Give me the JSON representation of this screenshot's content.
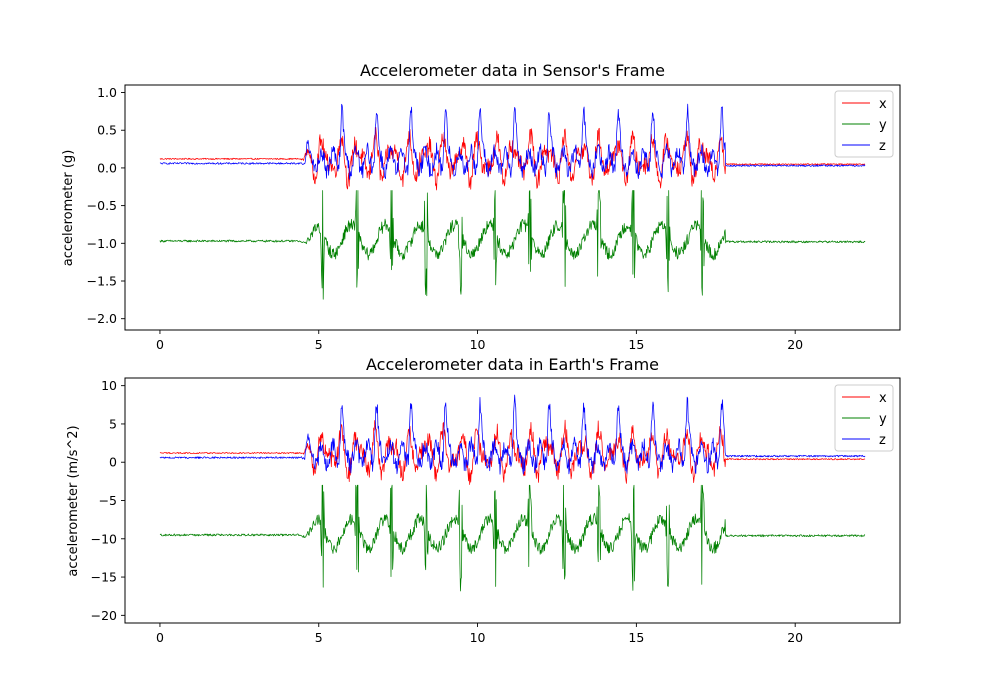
{
  "colors": {
    "x": "#ff0000",
    "y": "#008000",
    "z": "#0000ff"
  },
  "chart_data": [
    {
      "type": "line",
      "title": "Accelerometer data in Sensor's Frame",
      "ylabel": "accelerometer (g)",
      "xlabel": "",
      "xlim": [
        -1.1,
        23.3
      ],
      "ylim": [
        -2.15,
        1.1
      ],
      "xticks": [
        0,
        5,
        10,
        15,
        20
      ],
      "yticks": [
        -2.0,
        -1.5,
        -1.0,
        -0.5,
        0.0,
        0.5,
        1.0
      ],
      "ytick_labels": [
        "−2.0",
        "−1.5",
        "−1.0",
        "−0.5",
        "0.0",
        "0.5",
        "1.0"
      ],
      "legend": {
        "placement": "upper right",
        "entries": [
          "x",
          "y",
          "z"
        ]
      },
      "grid": false,
      "activity": {
        "t_start": 5.0,
        "t_end": 17.5,
        "x_total": 22.2,
        "cycles": 11.5
      },
      "series": [
        {
          "name": "x",
          "color": "#ff0000",
          "baseline_pre": 0.12,
          "baseline_post": 0.05,
          "amplitude": 0.35,
          "offset": 0.12,
          "min": -0.35,
          "max": 0.6
        },
        {
          "name": "y",
          "color": "#008000",
          "baseline_pre": -0.97,
          "baseline_post": -0.98,
          "amplitude": 0.55,
          "offset": -0.95,
          "min": -2.0,
          "max": -0.3
        },
        {
          "name": "z",
          "color": "#0000ff",
          "baseline_pre": 0.06,
          "baseline_post": 0.03,
          "amplitude": 0.45,
          "offset": 0.2,
          "min": -0.3,
          "max": 0.92
        }
      ]
    },
    {
      "type": "line",
      "title": "Accelerometer data in Earth's Frame",
      "ylabel": "accelerometer (m/s^2)",
      "xlabel": "",
      "xlim": [
        -1.1,
        23.3
      ],
      "ylim": [
        -21.0,
        11.0
      ],
      "xticks": [
        0,
        5,
        10,
        15,
        20
      ],
      "yticks": [
        -20,
        -15,
        -10,
        -5,
        0,
        5,
        10
      ],
      "ytick_labels": [
        "−20",
        "−15",
        "−10",
        "−5",
        "0",
        "5",
        "10"
      ],
      "legend": {
        "placement": "upper right",
        "entries": [
          "x",
          "y",
          "z"
        ]
      },
      "grid": false,
      "activity": {
        "t_start": 5.0,
        "t_end": 17.5,
        "x_total": 22.2,
        "cycles": 11.5
      },
      "series": [
        {
          "name": "x",
          "color": "#ff0000",
          "baseline_pre": 1.2,
          "baseline_post": 0.4,
          "amplitude": 3.5,
          "offset": 1.2,
          "min": -3.0,
          "max": 5.5
        },
        {
          "name": "y",
          "color": "#008000",
          "baseline_pre": -9.5,
          "baseline_post": -9.6,
          "amplitude": 5.5,
          "offset": -9.3,
          "min": -19.5,
          "max": -3.0
        },
        {
          "name": "z",
          "color": "#0000ff",
          "baseline_pre": 0.6,
          "baseline_post": 0.8,
          "amplitude": 4.5,
          "offset": 2.0,
          "min": -3.0,
          "max": 9.9
        }
      ]
    }
  ]
}
